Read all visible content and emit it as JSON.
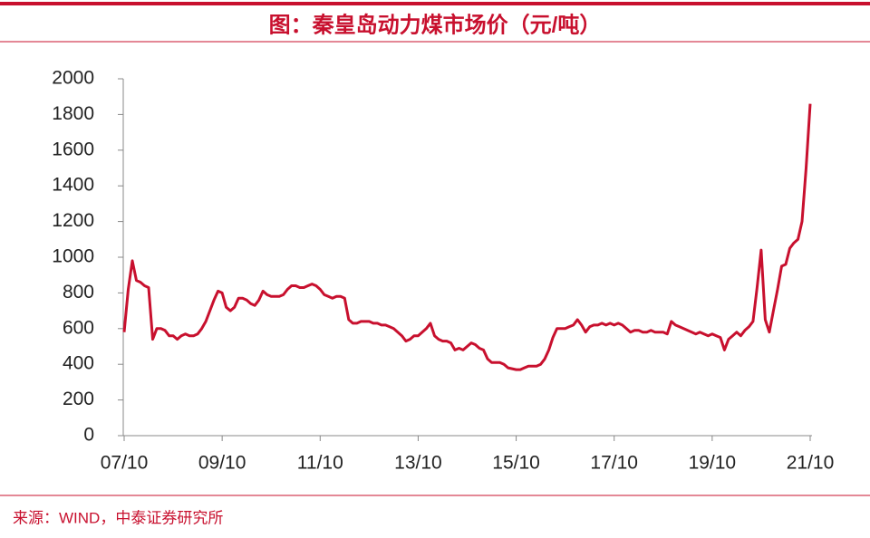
{
  "chart_data": {
    "type": "line",
    "title": "图：秦皇岛动力煤市场价（元/吨）",
    "source": "来源：WIND，中泰证券研究所",
    "x": [
      "07/10",
      "07/11",
      "07/12",
      "08/01",
      "08/02",
      "08/03",
      "08/04",
      "08/05",
      "08/06",
      "08/07",
      "08/08",
      "08/09",
      "08/10",
      "08/11",
      "08/12",
      "09/01",
      "09/02",
      "09/03",
      "09/04",
      "09/05",
      "09/06",
      "09/07",
      "09/08",
      "09/09",
      "09/10",
      "09/11",
      "09/12",
      "10/01",
      "10/02",
      "10/03",
      "10/04",
      "10/05",
      "10/06",
      "10/07",
      "10/08",
      "10/09",
      "10/10",
      "10/11",
      "10/12",
      "11/01",
      "11/02",
      "11/03",
      "11/04",
      "11/05",
      "11/06",
      "11/07",
      "11/08",
      "11/09",
      "11/10",
      "11/11",
      "11/12",
      "12/01",
      "12/02",
      "12/03",
      "12/04",
      "12/05",
      "12/06",
      "12/07",
      "12/08",
      "12/09",
      "12/10",
      "12/11",
      "12/12",
      "13/01",
      "13/02",
      "13/03",
      "13/04",
      "13/05",
      "13/06",
      "13/07",
      "13/08",
      "13/09",
      "13/10",
      "13/11",
      "13/12",
      "14/01",
      "14/02",
      "14/03",
      "14/04",
      "14/05",
      "14/06",
      "14/07",
      "14/08",
      "14/09",
      "14/10",
      "14/11",
      "14/12",
      "15/01",
      "15/02",
      "15/03",
      "15/04",
      "15/05",
      "15/06",
      "15/07",
      "15/08",
      "15/09",
      "15/10",
      "15/11",
      "15/12",
      "16/01",
      "16/02",
      "16/03",
      "16/04",
      "16/05",
      "16/06",
      "16/07",
      "16/08",
      "16/09",
      "16/10",
      "16/11",
      "16/12",
      "17/01",
      "17/02",
      "17/03",
      "17/04",
      "17/05",
      "17/06",
      "17/07",
      "17/08",
      "17/09",
      "17/10",
      "17/11",
      "17/12",
      "18/01",
      "18/02",
      "18/03",
      "18/04",
      "18/05",
      "18/06",
      "18/07",
      "18/08",
      "18/09",
      "18/10",
      "18/11",
      "18/12",
      "19/01",
      "19/02",
      "19/03",
      "19/04",
      "19/05",
      "19/06",
      "19/07",
      "19/08",
      "19/09",
      "19/10",
      "19/11",
      "19/12",
      "20/01",
      "20/02",
      "20/03",
      "20/04",
      "20/05",
      "20/06",
      "20/07",
      "20/08",
      "20/09",
      "20/10",
      "20/11",
      "20/12",
      "21/01",
      "21/02",
      "21/03",
      "21/04",
      "21/05",
      "21/06",
      "21/07",
      "21/08",
      "21/09",
      "21/10"
    ],
    "series": [
      {
        "color": "#c8102e",
        "values": [
          580,
          820,
          980,
          870,
          860,
          840,
          830,
          540,
          600,
          600,
          590,
          560,
          560,
          540,
          560,
          570,
          560,
          560,
          570,
          600,
          640,
          700,
          760,
          810,
          800,
          720,
          700,
          720,
          770,
          770,
          760,
          740,
          730,
          760,
          810,
          790,
          780,
          780,
          780,
          790,
          820,
          840,
          840,
          830,
          830,
          840,
          850,
          840,
          820,
          790,
          780,
          770,
          780,
          780,
          770,
          650,
          630,
          630,
          640,
          640,
          640,
          630,
          630,
          620,
          620,
          610,
          600,
          580,
          560,
          530,
          540,
          560,
          560,
          580,
          600,
          630,
          560,
          540,
          530,
          530,
          520,
          480,
          490,
          480,
          500,
          520,
          510,
          490,
          480,
          430,
          410,
          410,
          410,
          400,
          380,
          375,
          370,
          370,
          380,
          390,
          390,
          390,
          400,
          430,
          480,
          550,
          600,
          600,
          600,
          610,
          620,
          650,
          620,
          580,
          610,
          620,
          620,
          630,
          620,
          630,
          620,
          630,
          620,
          600,
          580,
          590,
          590,
          580,
          580,
          590,
          580,
          580,
          580,
          570,
          640,
          620,
          610,
          600,
          590,
          580,
          570,
          580,
          570,
          560,
          570,
          560,
          550,
          480,
          540,
          560,
          580,
          560,
          590,
          610,
          640,
          830,
          1040,
          650,
          580,
          700,
          820,
          950,
          960,
          1050,
          1080,
          1100,
          1200,
          1500,
          1860
        ]
      }
    ],
    "ylim": [
      0,
      2000
    ],
    "yticks": [
      0,
      200,
      400,
      600,
      800,
      1000,
      1200,
      1400,
      1600,
      1800,
      2000
    ],
    "xticks": [
      "07/10",
      "09/10",
      "11/10",
      "13/10",
      "15/10",
      "17/10",
      "19/10",
      "21/10"
    ]
  }
}
